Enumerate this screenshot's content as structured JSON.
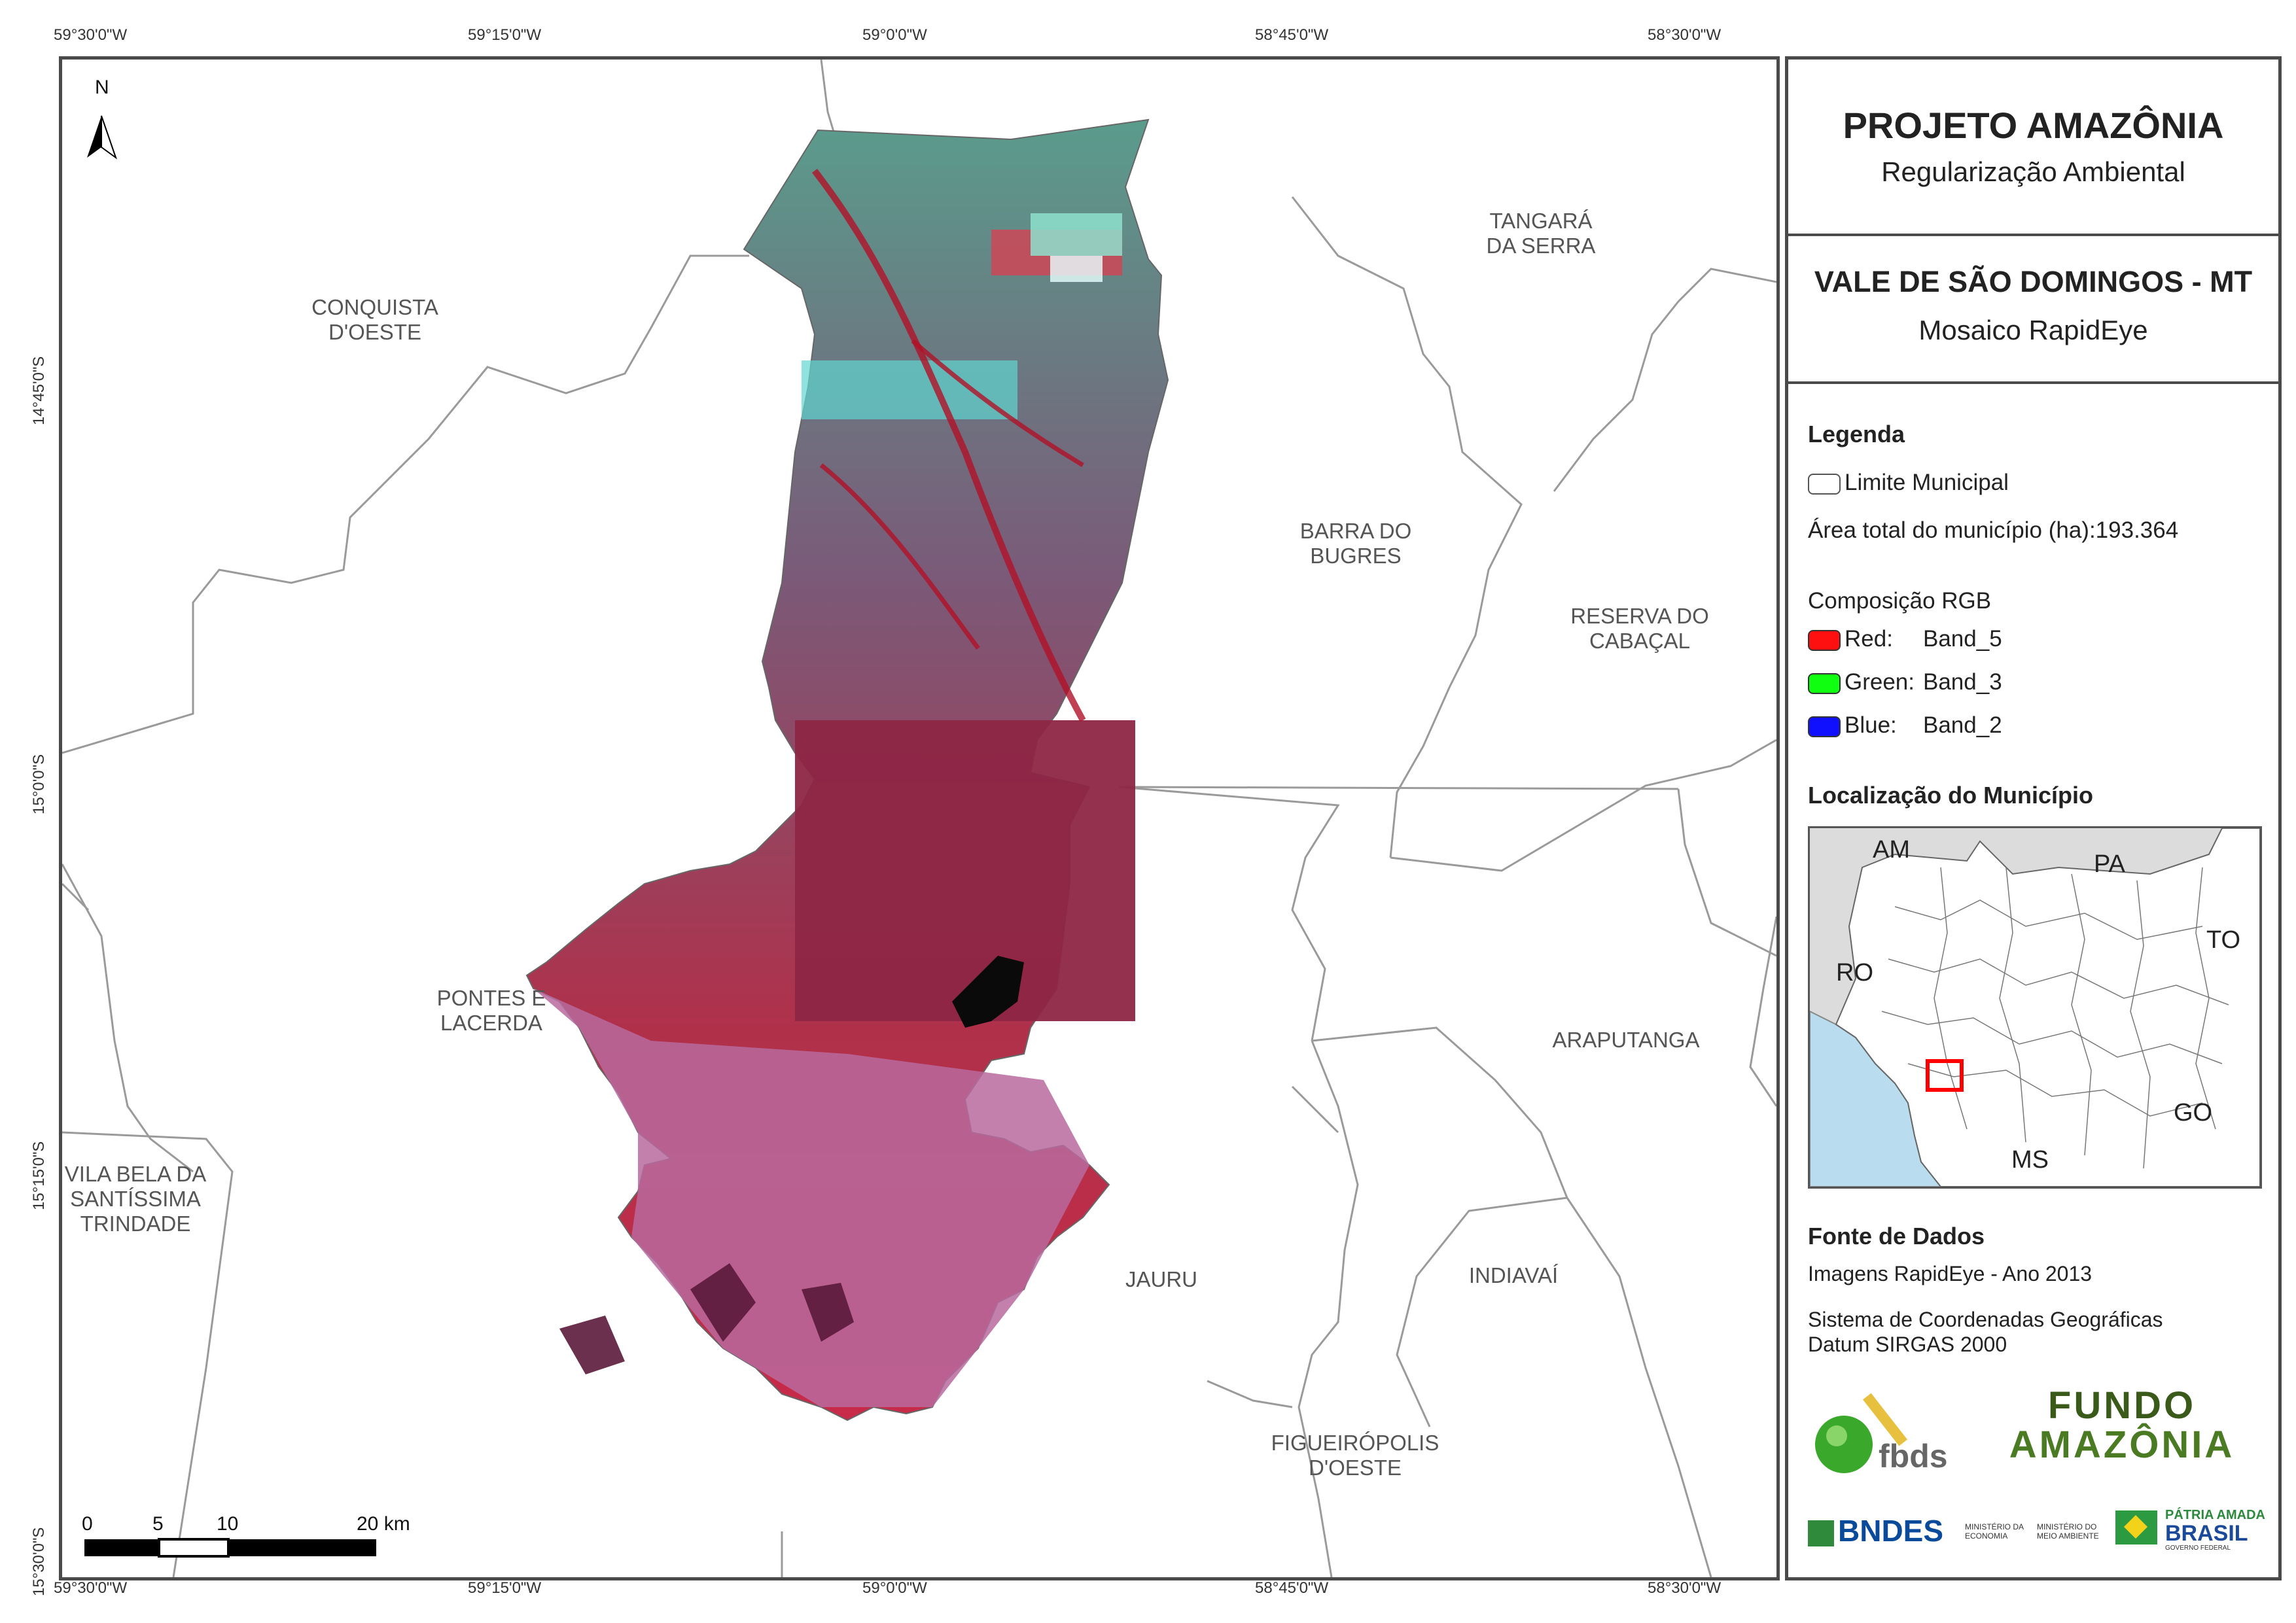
{
  "coords": {
    "top": [
      "59°30'0\"W",
      "59°15'0\"W",
      "59°0'0\"W",
      "58°45'0\"W",
      "58°30'0\"W"
    ],
    "bottom": [
      "59°30'0\"W",
      "59°15'0\"W",
      "59°0'0\"W",
      "58°45'0\"W",
      "58°30'0\"W"
    ],
    "left": [
      "14°45'0\"S",
      "15°0'0\"S",
      "15°15'0\"S",
      "15°30'0\"S"
    ]
  },
  "map": {
    "north_label": "N",
    "municipalities": {
      "conquista": [
        "CONQUISTA",
        "D'OESTE"
      ],
      "tangara": [
        "TANGARÁ",
        "DA SERRA"
      ],
      "barra": [
        "BARRA DO",
        "BUGRES"
      ],
      "reserva": [
        "RESERVA DO",
        "CABAÇAL"
      ],
      "pontes": [
        "PONTES E",
        "LACERDA"
      ],
      "araputanga": "ARAPUTANGA",
      "vila_bela": [
        "VILA BELA DA",
        "SANTÍSSIMA",
        "TRINDADE"
      ],
      "jauru": "JAURU",
      "indiavai": "INDIAVAÍ",
      "figueiropolis": [
        "FIGUEIRÓPOLIS",
        "D'OESTE"
      ]
    },
    "scale_bar": {
      "labels": [
        "0",
        "5",
        "10",
        "20 km"
      ]
    }
  },
  "panel": {
    "title": "PROJETO AMAZÔNIA",
    "subtitle": "Regularização Ambiental",
    "municipality_title": "VALE DE SÃO DOMINGOS - MT",
    "mosaic": "Mosaico RapidEye",
    "legend_heading": "Legenda",
    "limit_label": "Limite Municipal",
    "area_label": "Área total do município (ha):193.364",
    "rgb_heading": "Composição RGB",
    "bands": [
      {
        "channel": "Red:",
        "band": "Band_5",
        "color": "#ff1010"
      },
      {
        "channel": "Green:",
        "band": "Band_3",
        "color": "#10ff10"
      },
      {
        "channel": "Blue:",
        "band": "Band_2",
        "color": "#1010ff"
      }
    ],
    "location_heading": "Localização do Município",
    "inset_labels": {
      "am": "AM",
      "pa": "PA",
      "ro": "RO",
      "to": "TO",
      "go": "GO",
      "ms": "MS"
    },
    "sources_heading": "Fonte de Dados",
    "source_line": "Imagens RapidEye - Ano 2013",
    "crs_line1": "Sistema de Coordenadas Geográficas",
    "crs_line2": "Datum SIRGAS 2000",
    "logos": {
      "fbds": "fbds",
      "fundo1": "FUNDO",
      "fundo2": "AMAZÔNIA",
      "bndes": "BNDES",
      "min1": "MINISTÉRIO DA ECONOMIA",
      "min2": "MINISTÉRIO DO MEIO AMBIENTE",
      "patria": "PÁTRIA AMADA",
      "brasil": "BRASIL",
      "gov": "GOVERNO FEDERAL"
    }
  },
  "colors": {
    "frame": "#4a4a4a",
    "boundary": "#9a9a9a",
    "inset_water": "#b9dcef",
    "inset_land": "#dcdcdc",
    "inset_highlight": "#ff0000"
  }
}
